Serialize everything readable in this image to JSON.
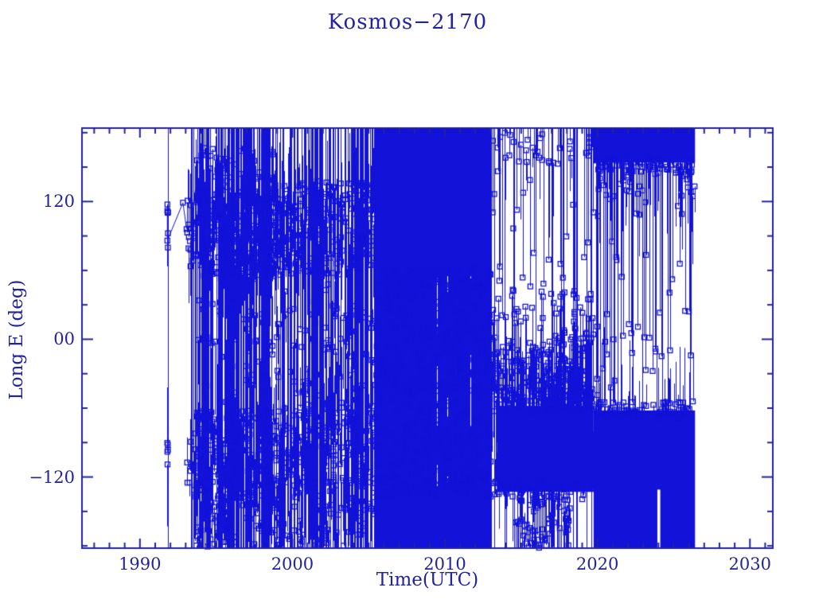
{
  "chart_data": {
    "type": "scatter",
    "title": "Kosmos−2170",
    "xlabel": "Time(UTC)",
    "ylabel": "Long E (deg)",
    "xlim": [
      1986.2,
      2031.5
    ],
    "ylim": [
      -182,
      184
    ],
    "x_major_ticks": [
      1990,
      2000,
      2010,
      2020,
      2030
    ],
    "x_tick_labels": [
      "1990",
      "2000",
      "2010",
      "2020",
      "2030"
    ],
    "x_minor_step": 1,
    "y_major_ticks": [
      120,
      0,
      -120
    ],
    "y_tick_labels": [
      "120",
      "00",
      "−120"
    ],
    "y_minor_step": 30,
    "grid": false,
    "legend": "none",
    "marker": {
      "shape": "open-square",
      "size": 6
    },
    "colors": {
      "axis": "#23239f",
      "data": "#1212d8",
      "background": "#ffffff"
    },
    "seed": 11,
    "data_time_range": [
      1991.8,
      2026.4
    ],
    "early_polyline": [
      [
        1991.8,
        112
      ],
      [
        1991.8,
        86
      ],
      [
        1992.82,
        119
      ],
      [
        1993.06,
        96
      ]
    ],
    "solid_rects": [
      {
        "t0": 2005.4,
        "t1": 2013.05,
        "y0": 55,
        "y1": 184
      },
      {
        "t0": 2005.4,
        "t1": 2013.05,
        "y0": -182,
        "y1": -128
      },
      {
        "t0": 2013.4,
        "t1": 2019.75,
        "y0": -133,
        "y1": -58
      },
      {
        "t0": 2019.75,
        "t1": 2026.4,
        "y0": 154,
        "y1": 184
      },
      {
        "t0": 2019.75,
        "t1": 2026.4,
        "y0": -182,
        "y1": -62
      }
    ],
    "white_gaps": [
      {
        "t0": 2023.93,
        "t1": 2024.12,
        "y0": -182,
        "y1": -131
      }
    ],
    "segments": [
      {
        "t0": 1991.78,
        "t1": 1991.84,
        "full_lines": 1,
        "part_lines": 0,
        "bands": [
          {
            "y0": 72,
            "y1": 118,
            "n": 6,
            "stem": "short"
          },
          {
            "y0": -112,
            "y1": -90,
            "n": 5,
            "stem": "short"
          }
        ]
      },
      {
        "t0": 1993.05,
        "t1": 1993.6,
        "full_lines": 5,
        "part_lines": 0,
        "bands": [
          {
            "y0": 55,
            "y1": 125,
            "n": 14,
            "stem": "short"
          },
          {
            "y0": -132,
            "y1": -82,
            "n": 10,
            "stem": "short"
          }
        ]
      },
      {
        "t0": 1993.6,
        "t1": 1999.3,
        "full_lines": 62,
        "part_lines": 46,
        "bands": [
          {
            "y0": 52,
            "y1": 130,
            "n": 330,
            "stem": "short"
          },
          {
            "y0": 130,
            "y1": 168,
            "n": 42,
            "stem": "short"
          },
          {
            "y0": -148,
            "y1": -62,
            "n": 290,
            "stem": "short"
          },
          {
            "y0": -181,
            "y1": -148,
            "n": 48,
            "stem": "short"
          },
          {
            "y0": -55,
            "y1": 42,
            "n": 55,
            "stem": "short"
          }
        ]
      },
      {
        "t0": 1995.8,
        "t1": 1998.4,
        "full_lines": 40,
        "part_lines": 0,
        "bands": []
      },
      {
        "t0": 1999.3,
        "t1": 2005.4,
        "full_lines": 42,
        "part_lines": 30,
        "bands": [
          {
            "y0": 55,
            "y1": 138,
            "n": 215,
            "stem": "short"
          },
          {
            "y0": -150,
            "y1": -52,
            "n": 225,
            "stem": "short"
          },
          {
            "y0": -50,
            "y1": 48,
            "n": 70,
            "stem": "short"
          },
          {
            "y0": -180,
            "y1": -150,
            "n": 38,
            "stem": "short"
          }
        ]
      },
      {
        "t0": 2001.2,
        "t1": 2002.1,
        "full_lines": 18,
        "part_lines": 0,
        "bands": []
      },
      {
        "t0": 2003.9,
        "t1": 2004.9,
        "full_lines": 26,
        "part_lines": 0,
        "bands": []
      },
      {
        "t0": 2005.4,
        "t1": 2013.05,
        "full_lines": 430,
        "part_lines": 0,
        "bands": [
          {
            "y0": -125,
            "y1": 52,
            "n": 430,
            "stem": "short"
          },
          {
            "y0": 44,
            "y1": 62,
            "n": 70,
            "stem": "short"
          },
          {
            "y0": -138,
            "y1": -118,
            "n": 70,
            "stem": "short"
          }
        ]
      },
      {
        "t0": 2013.05,
        "t1": 2019.75,
        "full_lines": 13,
        "part_lines": 0,
        "bands": [
          {
            "y0": -55,
            "y1": -2,
            "n": 190,
            "stem": [
              -95,
              -62
            ]
          },
          {
            "y0": -2,
            "y1": 45,
            "n": 55,
            "stem": [
              -80,
              -25
            ]
          },
          {
            "y0": -64,
            "y1": -42,
            "n": 70,
            "stem": "short"
          },
          {
            "y0": 20,
            "y1": 155,
            "n": 26,
            "stem": "top"
          },
          {
            "y0": 152,
            "y1": 180,
            "n": 34,
            "stem": "short"
          },
          {
            "t0": 2014.6,
            "t1": 2018.2,
            "y0": -182,
            "y1": -138,
            "n": 64,
            "stem": "short"
          },
          {
            "y0": -140,
            "y1": -124,
            "n": 52,
            "stem": "short"
          }
        ]
      },
      {
        "t0": 2019.75,
        "t1": 2026.4,
        "full_lines": 11,
        "part_lines": 0,
        "bands": [
          {
            "y0": -55,
            "y1": 145,
            "n": 46,
            "stem": "top"
          },
          {
            "y0": 145,
            "y1": 158,
            "n": 72,
            "stem": "short"
          },
          {
            "y0": -70,
            "y1": -54,
            "n": 72,
            "stem": "short"
          },
          {
            "y0": 122,
            "y1": 148,
            "n": 22,
            "stem": "short"
          }
        ]
      }
    ]
  }
}
